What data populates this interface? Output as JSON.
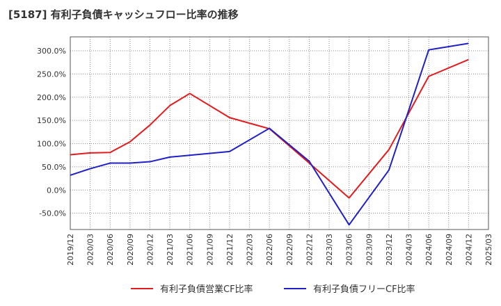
{
  "title": "[5187]  有利子負債キャッシュフロー比率の推移",
  "chart_data": {
    "type": "line",
    "title": "[5187]  有利子負債キャッシュフロー比率の推移",
    "categories": [
      "2019/12",
      "2020/03",
      "2020/06",
      "2020/09",
      "2020/12",
      "2021/03",
      "2021/06",
      "2021/09",
      "2021/12",
      "2022/03",
      "2022/06",
      "2022/09",
      "2022/12",
      "2023/03",
      "2023/06",
      "2023/09",
      "2023/12",
      "2024/03",
      "2024/06",
      "2024/09",
      "2024/12",
      "2025/03"
    ],
    "ylim": [
      -85,
      330
    ],
    "yticks": [
      -50,
      0,
      50,
      100,
      150,
      200,
      250,
      300
    ],
    "ytick_labels": [
      "-50.0%",
      "0.0%",
      "50.0%",
      "100.0%",
      "150.0%",
      "200.0%",
      "250.0%",
      "300.0%"
    ],
    "grid": true,
    "legend_position": "bottom",
    "series": [
      {
        "name": "有利子負債営業CF比率",
        "color": "#e31a1c",
        "values": [
          76,
          80,
          81,
          104,
          140,
          182,
          208,
          null,
          156,
          null,
          132,
          null,
          58,
          null,
          -17,
          null,
          87,
          null,
          245,
          null,
          281,
          null
        ]
      },
      {
        "name": "有利子負債フリーCF比率",
        "color": "#1f1fc8",
        "values": [
          32,
          46,
          58,
          58,
          61,
          71,
          null,
          null,
          83,
          null,
          133,
          null,
          62,
          null,
          -75,
          null,
          43,
          null,
          302,
          null,
          316,
          null
        ]
      }
    ]
  }
}
